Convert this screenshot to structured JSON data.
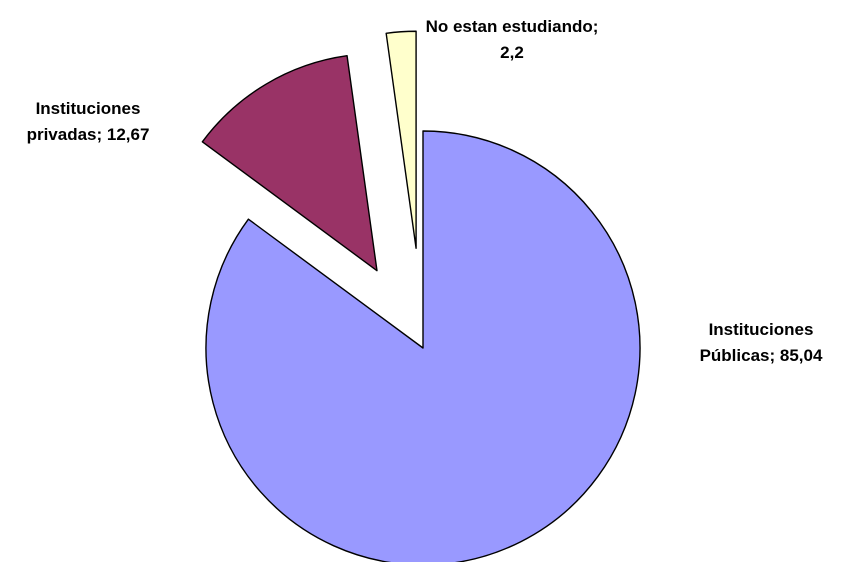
{
  "chart_data": {
    "type": "pie",
    "title": "",
    "legend": "none",
    "slices": [
      {
        "category": "Instituciones Públicas",
        "value": 85.04,
        "label_lines": [
          "Instituciones",
          "Públicas; 85,04"
        ],
        "color": "#9999ff"
      },
      {
        "category": "Instituciones privadas",
        "value": 12.67,
        "label_lines": [
          "Instituciones",
          "privadas; 12,67"
        ],
        "color": "#993366"
      },
      {
        "category": "No estan estudiando",
        "value": 2.2,
        "label_lines": [
          "No estan estudiando;",
          "2,2"
        ],
        "color": "#ffffcc"
      }
    ]
  }
}
